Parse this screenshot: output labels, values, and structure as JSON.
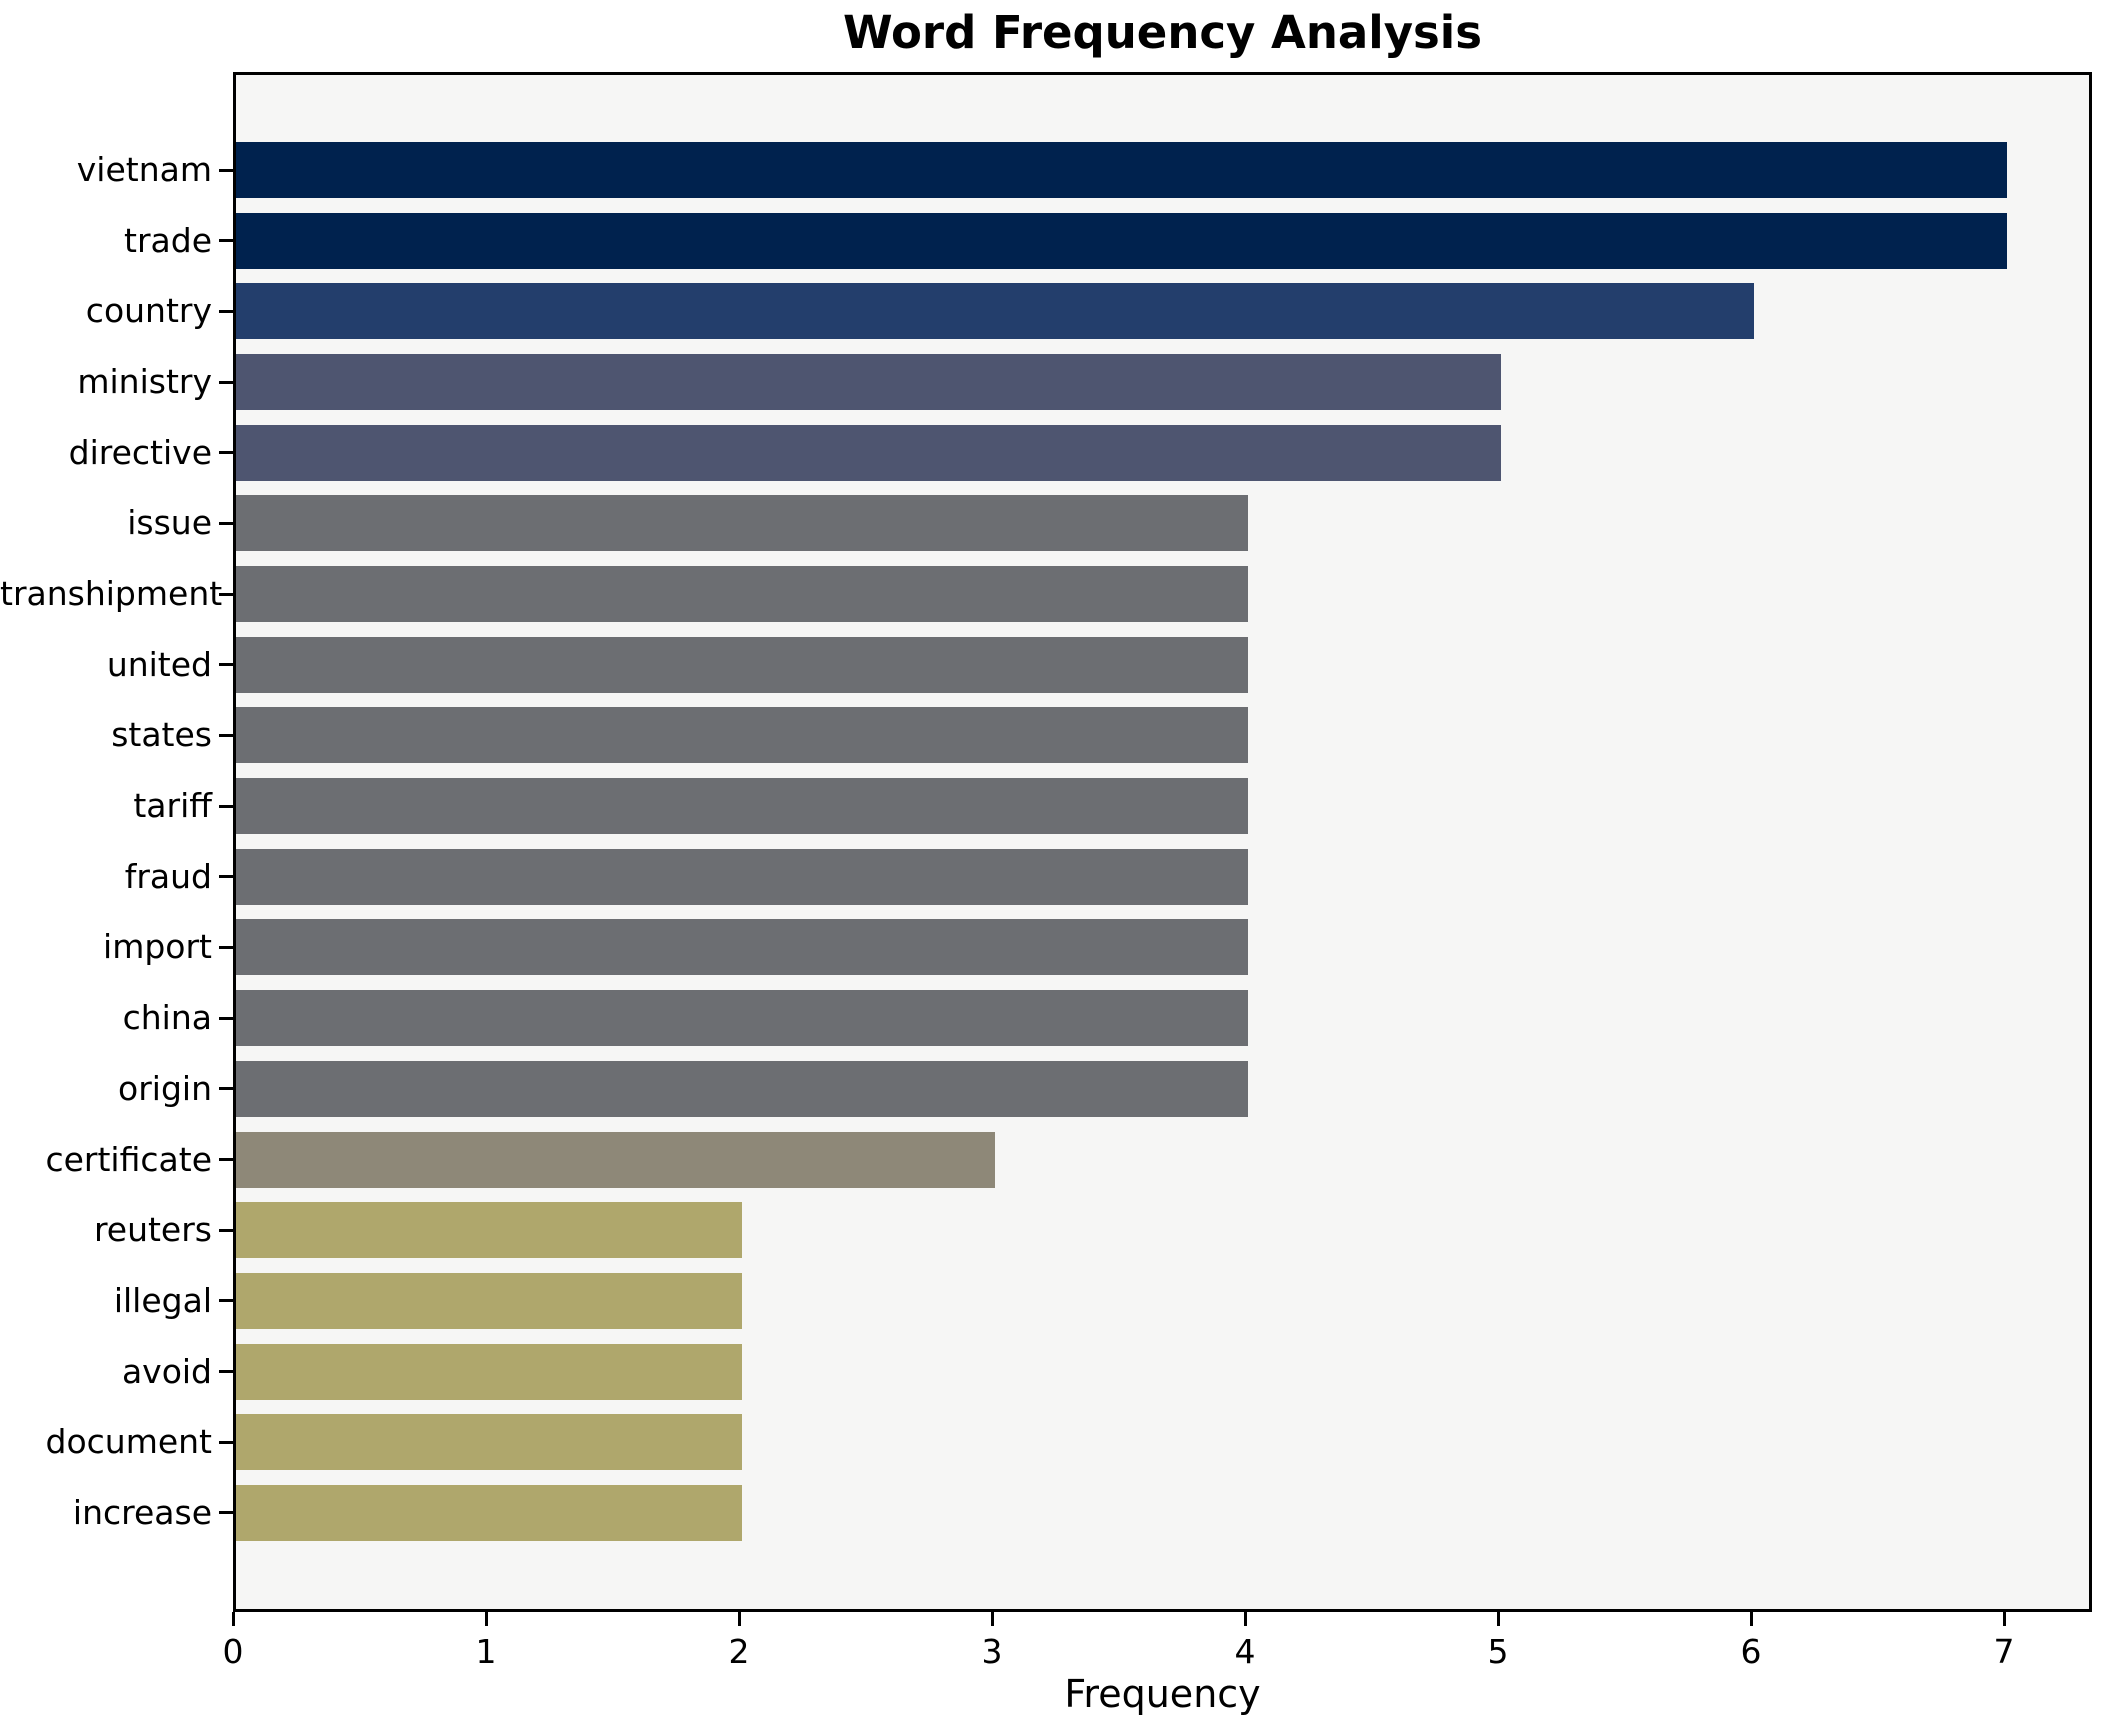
{
  "chart_data": {
    "type": "bar",
    "orientation": "horizontal",
    "title": "Word Frequency Analysis",
    "xlabel": "Frequency",
    "ylabel": "",
    "categories": [
      "vietnam",
      "trade",
      "country",
      "ministry",
      "directive",
      "issue",
      "transhipment",
      "united",
      "states",
      "tariff",
      "fraud",
      "import",
      "china",
      "origin",
      "certificate",
      "reuters",
      "illegal",
      "avoid",
      "document",
      "increase"
    ],
    "values": [
      7,
      7,
      6,
      5,
      5,
      4,
      4,
      4,
      4,
      4,
      4,
      4,
      4,
      4,
      3,
      2,
      2,
      2,
      2,
      2
    ],
    "bar_colors": [
      "#00224e",
      "#00224e",
      "#233e6c",
      "#4e5570",
      "#4e5570",
      "#6c6e72",
      "#6c6e72",
      "#6c6e72",
      "#6c6e72",
      "#6c6e72",
      "#6c6e72",
      "#6c6e72",
      "#6c6e72",
      "#6c6e72",
      "#8e8878",
      "#afa76c",
      "#afa76c",
      "#afa76c",
      "#afa76c",
      "#afa76c"
    ],
    "x_ticks": [
      0,
      1,
      2,
      3,
      4,
      5,
      6,
      7
    ],
    "xlim": [
      0,
      7.35
    ],
    "grid": false,
    "legend": null,
    "plot_bg": "#f6f6f5",
    "figure_bg": "#ffffff",
    "spine_color": "#000000"
  }
}
